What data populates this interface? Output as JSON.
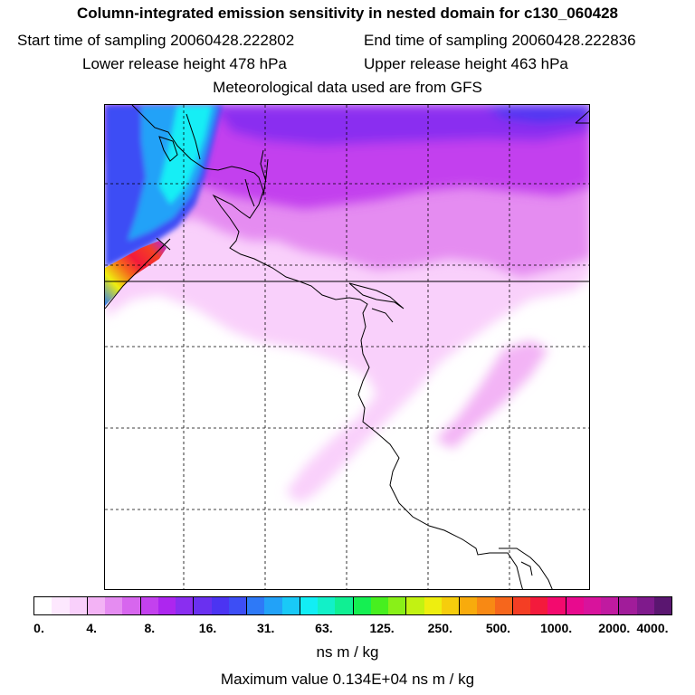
{
  "header": {
    "title": "Column-integrated emission sensitivity in nested domain for c130_060428",
    "start_label": "Start time of sampling 20060428.222802",
    "end_label": "End time of sampling 20060428.222836",
    "lower_label": "Lower release height  478 hPa",
    "upper_label": "Upper release height  463 hPa",
    "met_label": "Meteorological data used are from GFS"
  },
  "colorbar": {
    "colors": [
      "#ffffff",
      "#fde8fe",
      "#f9d0fb",
      "#f3b3f5",
      "#e58cf1",
      "#d766ee",
      "#c341ee",
      "#ad26ef",
      "#8a2ef0",
      "#6a30f0",
      "#4b34f2",
      "#3d4ef5",
      "#2e79f7",
      "#22a2f8",
      "#19c9f7",
      "#12eef5",
      "#12f0c8",
      "#10ef93",
      "#15ef52",
      "#47ef1f",
      "#89f018",
      "#c2f212",
      "#eeee0f",
      "#f6cd0c",
      "#f8ab0c",
      "#f88914",
      "#f6661c",
      "#f43e24",
      "#f31a3c",
      "#f30a6e",
      "#e80a8e",
      "#d8139c",
      "#c01aa0",
      "#a11c9a",
      "#7f1a8c",
      "#5a1670"
    ],
    "tick_labels": [
      "0.",
      "4.",
      "8.",
      "16.",
      "31.",
      "63.",
      "125.",
      "250.",
      "500.",
      "1000.",
      "2000.",
      "4000."
    ],
    "unit_label": "ns m / kg",
    "max_label": "Maximum value  0.134E+04 ns m / kg"
  }
}
